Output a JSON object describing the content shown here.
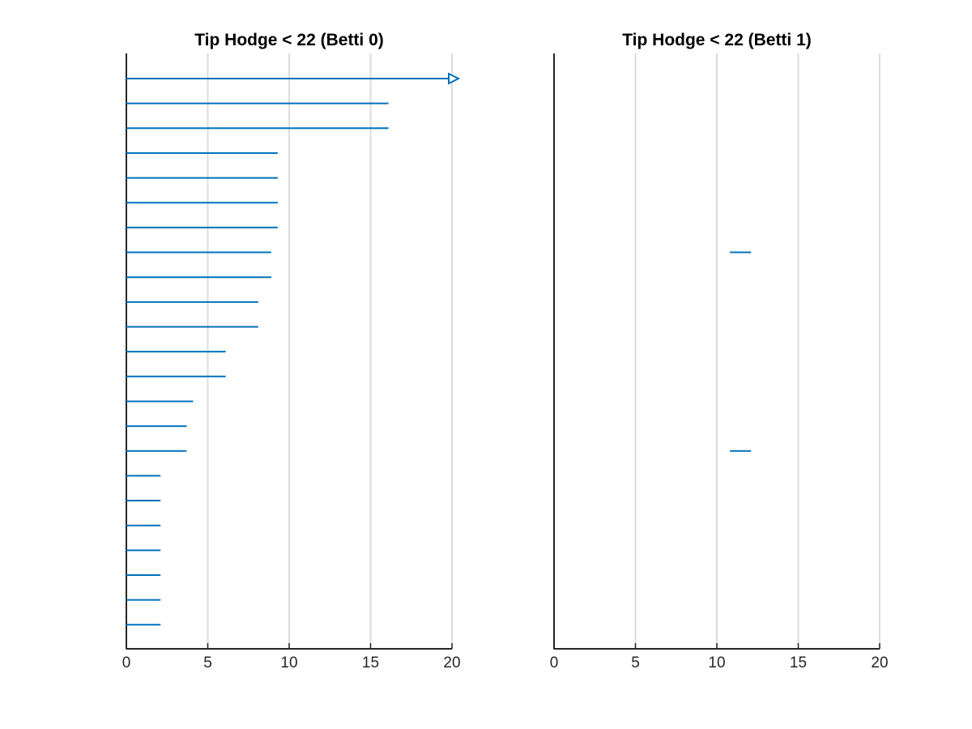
{
  "chart_data": [
    {
      "type": "barcode",
      "title": "Tip Hodge < 22 (Betti 0)",
      "xlim": [
        0,
        20
      ],
      "xticks": [
        0,
        5,
        10,
        15,
        20
      ],
      "xtick_labels": [
        "0",
        "5",
        "10",
        "15",
        "20"
      ],
      "grid": "vertical",
      "bar_color": "#0072bd",
      "grid_color": "#dcdcdc",
      "axis_color": "#262626",
      "n_rows": 23,
      "bars": [
        {
          "row": 1,
          "start": 0,
          "end": 20,
          "infinite": true
        },
        {
          "row": 2,
          "start": 0,
          "end": 16.1
        },
        {
          "row": 3,
          "start": 0,
          "end": 16.1
        },
        {
          "row": 4,
          "start": 0,
          "end": 9.3
        },
        {
          "row": 5,
          "start": 0,
          "end": 9.3
        },
        {
          "row": 6,
          "start": 0,
          "end": 9.3
        },
        {
          "row": 7,
          "start": 0,
          "end": 9.3
        },
        {
          "row": 8,
          "start": 0,
          "end": 8.9
        },
        {
          "row": 9,
          "start": 0,
          "end": 8.9
        },
        {
          "row": 10,
          "start": 0,
          "end": 8.1
        },
        {
          "row": 11,
          "start": 0,
          "end": 8.1
        },
        {
          "row": 12,
          "start": 0,
          "end": 6.1
        },
        {
          "row": 13,
          "start": 0,
          "end": 6.1
        },
        {
          "row": 14,
          "start": 0,
          "end": 4.1
        },
        {
          "row": 15,
          "start": 0,
          "end": 3.7
        },
        {
          "row": 16,
          "start": 0,
          "end": 3.7
        },
        {
          "row": 17,
          "start": 0,
          "end": 2.1
        },
        {
          "row": 18,
          "start": 0,
          "end": 2.1
        },
        {
          "row": 19,
          "start": 0,
          "end": 2.1
        },
        {
          "row": 20,
          "start": 0,
          "end": 2.1
        },
        {
          "row": 21,
          "start": 0,
          "end": 2.1
        },
        {
          "row": 22,
          "start": 0,
          "end": 2.1
        },
        {
          "row": 23,
          "start": 0,
          "end": 2.1
        }
      ]
    },
    {
      "type": "barcode",
      "title": "Tip Hodge < 22 (Betti 1)",
      "xlim": [
        0,
        20
      ],
      "xticks": [
        0,
        5,
        10,
        15,
        20
      ],
      "xtick_labels": [
        "0",
        "5",
        "10",
        "15",
        "20"
      ],
      "grid": "vertical",
      "bar_color": "#0072bd",
      "grid_color": "#dcdcdc",
      "axis_color": "#262626",
      "n_rows": 23,
      "bars": [
        {
          "row": 8,
          "start": 10.8,
          "end": 12.1
        },
        {
          "row": 16,
          "start": 10.8,
          "end": 12.1
        }
      ]
    }
  ]
}
